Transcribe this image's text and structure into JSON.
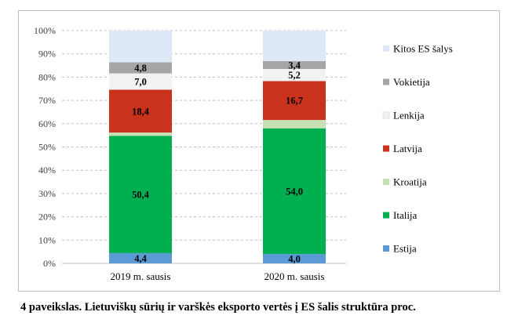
{
  "caption": "4 paveikslas. Lietuviškų sūrių ir varškės eksporto vertės į ES šalis struktūra proc.",
  "chart_data": {
    "type": "bar",
    "stacked": true,
    "categories": [
      "2019 m. sausis",
      "2020 m. sausis"
    ],
    "ylim": [
      0,
      100
    ],
    "yticks": [
      "0%",
      "10%",
      "20%",
      "30%",
      "40%",
      "50%",
      "60%",
      "70%",
      "80%",
      "90%",
      "100%"
    ],
    "grid": true,
    "legend_position": "right",
    "series": [
      {
        "name": "Estija",
        "color": "#5b9bd5",
        "values": [
          4.4,
          4.0
        ],
        "labels": [
          "4,4",
          "4,0"
        ]
      },
      {
        "name": "Italija",
        "color": "#00b050",
        "values": [
          50.4,
          54.0
        ],
        "labels": [
          "50,4",
          "54,0"
        ]
      },
      {
        "name": "Kroatija",
        "color": "#c5e0b4",
        "values": [
          1.4,
          3.6
        ],
        "labels": [
          "",
          ""
        ]
      },
      {
        "name": "Latvija",
        "color": "#c9331d",
        "values": [
          18.4,
          16.7
        ],
        "labels": [
          "18,4",
          "16,7"
        ]
      },
      {
        "name": "Lenkija",
        "color": "#f2f2f2",
        "values": [
          7.0,
          5.2
        ],
        "labels": [
          "7,0",
          "5,2"
        ]
      },
      {
        "name": "Vokietija",
        "color": "#a6a6a6",
        "values": [
          4.8,
          3.4
        ],
        "labels": [
          "4,8",
          "3,4"
        ]
      },
      {
        "name": "Kitos ES šalys",
        "color": "#dde9f7",
        "values": [
          13.6,
          13.1
        ],
        "labels": [
          "",
          ""
        ]
      }
    ]
  }
}
